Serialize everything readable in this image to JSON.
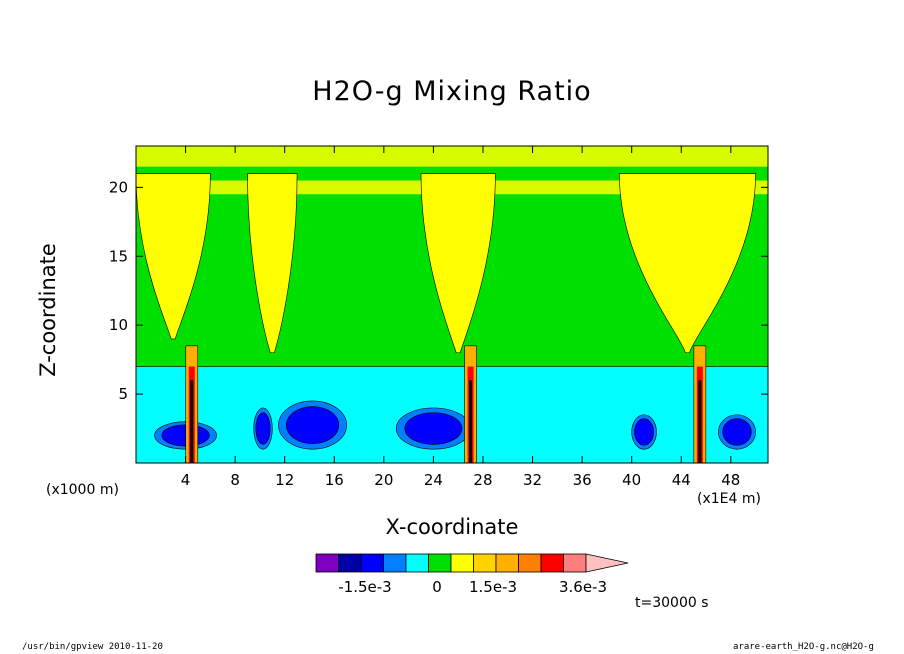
{
  "chart_data": {
    "type": "heatmap",
    "title": "H2O-g Mixing Ratio",
    "xlabel": "X-coordinate",
    "ylabel": "Z-coordinate",
    "x_unit": "(x1E4 m)",
    "z_unit": "(x1000 m)",
    "xlim": [
      0,
      51
    ],
    "ylim": [
      0,
      23
    ],
    "x_ticks": [
      "4",
      "8",
      "12",
      "16",
      "20",
      "24",
      "28",
      "32",
      "36",
      "40",
      "44",
      "48"
    ],
    "x_tick_values": [
      4,
      8,
      12,
      16,
      20,
      24,
      28,
      32,
      36,
      40,
      44,
      48
    ],
    "y_ticks": [
      "5",
      "10",
      "15",
      "20"
    ],
    "y_tick_values": [
      5,
      10,
      15,
      20
    ],
    "colorbar": {
      "levels_colors": [
        "#7f00bf",
        "#0000a8",
        "#0000ff",
        "#0080ff",
        "#00ffff",
        "#00e000",
        "#ffff00",
        "#ffd200",
        "#ffaf00",
        "#ff7f00",
        "#ff0000",
        "#ff7f7f",
        "#ffc0c0"
      ],
      "labels": [
        "-1.5e-3",
        "0",
        "1.5e-3",
        "3.6e-3"
      ]
    },
    "time_label": "t=30000 s",
    "footer_left": "/usr/bin/gpview  2010-11-20",
    "footer_right": "arare-earth_H2O-g.nc@H2O-g",
    "regions": {
      "background": "green",
      "yellow_plumes": [
        {
          "x": [
            0,
            6
          ],
          "z": [
            9,
            21
          ]
        },
        {
          "x": [
            9,
            13
          ],
          "z": [
            8,
            21
          ]
        },
        {
          "x": [
            23,
            29
          ],
          "z": [
            8,
            21
          ]
        },
        {
          "x": [
            39,
            50
          ],
          "z": [
            8,
            21
          ]
        }
      ],
      "cyan_layer": {
        "z": [
          0,
          7
        ]
      },
      "blue_patches": [
        {
          "x": [
            9.5,
            11
          ],
          "z": [
            1,
            4
          ]
        },
        {
          "x": [
            11.5,
            17
          ],
          "z": [
            1,
            4.5
          ]
        },
        {
          "x": [
            21,
            27
          ],
          "z": [
            1,
            4
          ]
        },
        {
          "x": [
            40,
            42
          ],
          "z": [
            1,
            3.5
          ]
        },
        {
          "x": [
            47,
            50
          ],
          "z": [
            1,
            3.5
          ]
        },
        {
          "x": [
            1.5,
            6.5
          ],
          "z": [
            1,
            3
          ]
        }
      ],
      "convective_columns": [
        4.5,
        27,
        45.5
      ]
    }
  }
}
